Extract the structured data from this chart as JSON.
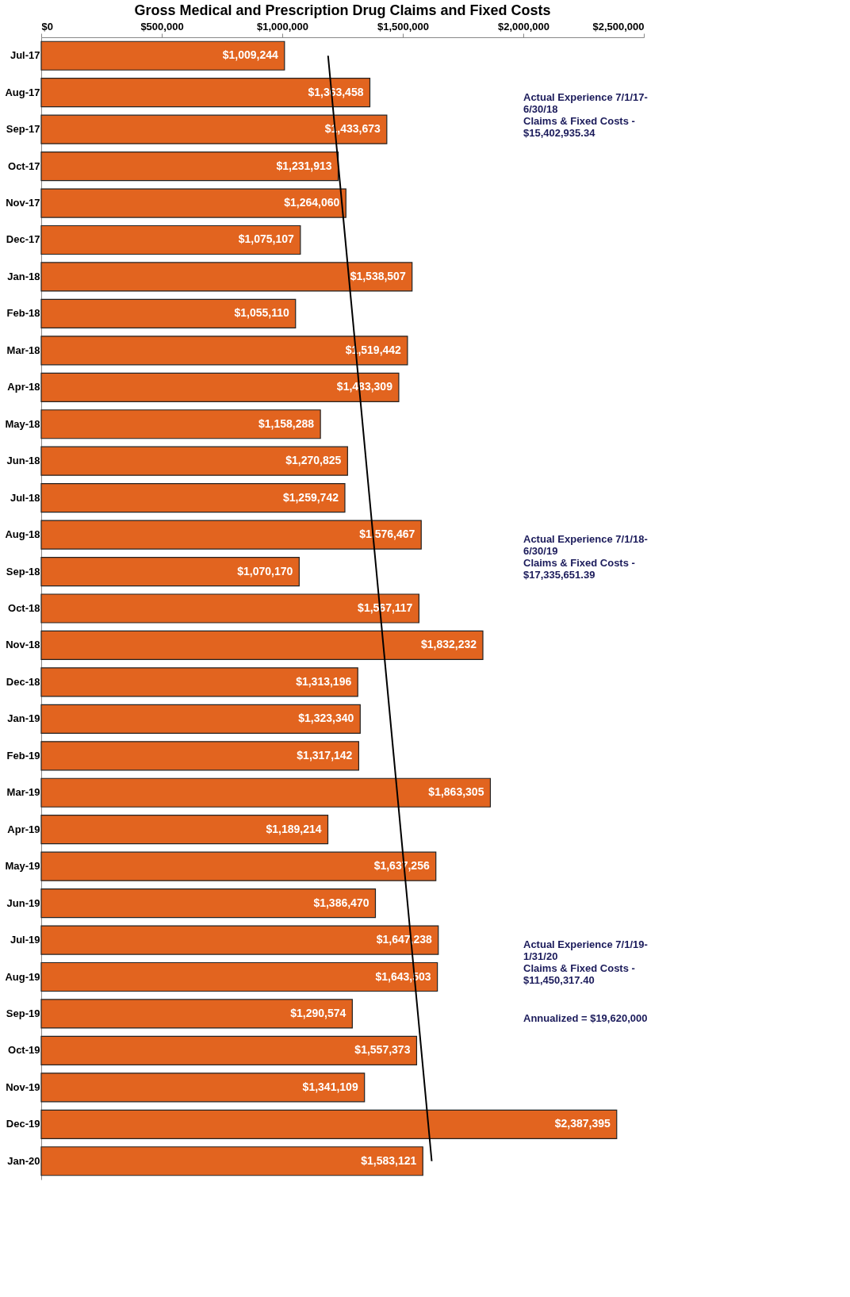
{
  "chart_data": {
    "type": "bar",
    "orientation": "horizontal",
    "title": "Gross Medical and Prescription Drug Claims and Fixed Costs",
    "categories": [
      "Jul-17",
      "Aug-17",
      "Sep-17",
      "Oct-17",
      "Nov-17",
      "Dec-17",
      "Jan-18",
      "Feb-18",
      "Mar-18",
      "Apr-18",
      "May-18",
      "Jun-18",
      "Jul-18",
      "Aug-18",
      "Sep-18",
      "Oct-18",
      "Nov-18",
      "Dec-18",
      "Jan-19",
      "Feb-19",
      "Mar-19",
      "Apr-19",
      "May-19",
      "Jun-19",
      "Jul-19",
      "Aug-19",
      "Sep-19",
      "Oct-19",
      "Nov-19",
      "Dec-19",
      "Jan-20"
    ],
    "series": [
      {
        "color": "#e2641f",
        "values": [
          1009244,
          1363458,
          1433673,
          1231913,
          1264060,
          1075107,
          1538507,
          1055110,
          1519442,
          1483309,
          1158288,
          1270825,
          1259742,
          1576467,
          1070170,
          1567117,
          1832232,
          1313196,
          1323340,
          1317142,
          1863305,
          1189214,
          1637256,
          1386470,
          1647238,
          1643503,
          1290574,
          1557373,
          1341109,
          2387395,
          1583121
        ],
        "value_labels": [
          "$1,009,244",
          "$1,363,458",
          "$1,433,673",
          "$1,231,913",
          "$1,264,060",
          "$1,075,107",
          "$1,538,507",
          "$1,055,110",
          "$1,519,442",
          "$1,483,309",
          "$1,158,288",
          "$1,270,825",
          "$1,259,742",
          "$1,576,467",
          "$1,070,170",
          "$1,567,117",
          "$1,832,232",
          "$1,313,196",
          "$1,323,340",
          "$1,317,142",
          "$1,863,305",
          "$1,189,214",
          "$1,637,256",
          "$1,386,470",
          "$1,647,238",
          "$1,643,503",
          "$1,290,574",
          "$1,557,373",
          "$1,341,109",
          "$2,387,395",
          "$1,583,121"
        ]
      },
      {
        "type": "line",
        "color": "#000000",
        "x": [
          "Jul-17",
          "Jan-20"
        ],
        "values": [
          1190000,
          1620000
        ]
      }
    ],
    "xlim": [
      0,
      2500000
    ],
    "xticks": [
      {
        "value": 0,
        "label": "$0"
      },
      {
        "value": 500000,
        "label": "$500,000"
      },
      {
        "value": 1000000,
        "label": "$1,000,000"
      },
      {
        "value": 1500000,
        "label": "$1,500,000"
      },
      {
        "value": 2000000,
        "label": "$2,000,000"
      },
      {
        "value": 2500000,
        "label": "$2,500,000"
      }
    ],
    "grid": false,
    "annotations": [
      "Actual Experience 7/1/17-\n6/30/18\nClaims & Fixed Costs -\n$15,402,935.34",
      "Actual Experience 7/1/18-\n6/30/19\nClaims & Fixed Costs -\n$17,335,651.39",
      "Actual Experience 7/1/19-\n1/31/20\nClaims & Fixed Costs -\n$11,450,317.40",
      "Annualized = $19,620,000"
    ]
  }
}
